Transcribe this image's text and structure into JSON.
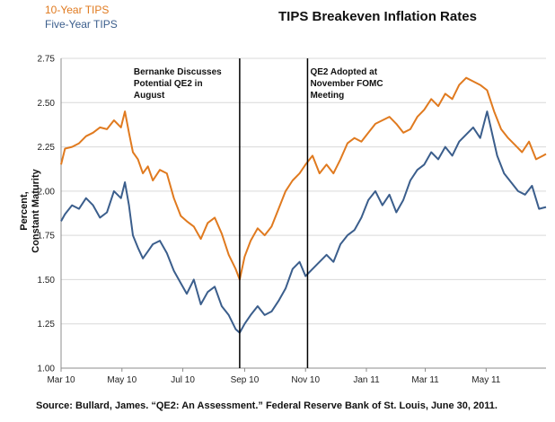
{
  "chart_data": {
    "type": "line",
    "title": "TIPS Breakeven Inflation Rates",
    "ylabel": [
      "Percent,",
      "Constant Maturity"
    ],
    "source": "Source: Bullard, James. “QE2: An Assessment.” Federal Reserve Bank of St. Louis, June 30, 2011.",
    "ylim": [
      1.0,
      2.75
    ],
    "y_ticks": [
      "1.00",
      "1.25",
      "1.50",
      "1.75",
      "2.00",
      "2.25",
      "2.50",
      "2.75"
    ],
    "x_range": [
      "2010-03-01",
      "2011-06-30"
    ],
    "x_ticks": [
      {
        "date": "2010-03-01",
        "label": "Mar 10"
      },
      {
        "date": "2010-05-01",
        "label": "May 10"
      },
      {
        "date": "2010-07-01",
        "label": "Jul 10"
      },
      {
        "date": "2010-09-01",
        "label": "Sep 10"
      },
      {
        "date": "2010-11-01",
        "label": "Nov 10"
      },
      {
        "date": "2011-01-01",
        "label": "Jan 11"
      },
      {
        "date": "2011-03-01",
        "label": "Mar 11"
      },
      {
        "date": "2011-05-01",
        "label": "May 11"
      }
    ],
    "grid": true,
    "legend": "top-left",
    "annotations": [
      {
        "date": "2010-08-27",
        "lines": [
          "Bernanke Discusses",
          "Potential QE2 in",
          "August"
        ]
      },
      {
        "date": "2010-11-03",
        "lines": [
          "QE2 Adopted at",
          "November FOMC",
          "Meeting"
        ]
      }
    ],
    "series": [
      {
        "name": "10-Year TIPS",
        "color": "#e07a1f",
        "points": [
          [
            "2010-03-01",
            2.15
          ],
          [
            "2010-03-05",
            2.24
          ],
          [
            "2010-03-12",
            2.25
          ],
          [
            "2010-03-19",
            2.27
          ],
          [
            "2010-03-26",
            2.31
          ],
          [
            "2010-04-02",
            2.33
          ],
          [
            "2010-04-09",
            2.36
          ],
          [
            "2010-04-16",
            2.35
          ],
          [
            "2010-04-23",
            2.4
          ],
          [
            "2010-04-30",
            2.36
          ],
          [
            "2010-05-04",
            2.45
          ],
          [
            "2010-05-08",
            2.33
          ],
          [
            "2010-05-12",
            2.22
          ],
          [
            "2010-05-17",
            2.18
          ],
          [
            "2010-05-22",
            2.1
          ],
          [
            "2010-05-27",
            2.14
          ],
          [
            "2010-06-01",
            2.06
          ],
          [
            "2010-06-08",
            2.12
          ],
          [
            "2010-06-15",
            2.1
          ],
          [
            "2010-06-22",
            1.96
          ],
          [
            "2010-06-29",
            1.86
          ],
          [
            "2010-07-05",
            1.83
          ],
          [
            "2010-07-12",
            1.8
          ],
          [
            "2010-07-19",
            1.73
          ],
          [
            "2010-07-26",
            1.82
          ],
          [
            "2010-08-02",
            1.85
          ],
          [
            "2010-08-09",
            1.76
          ],
          [
            "2010-08-16",
            1.64
          ],
          [
            "2010-08-23",
            1.56
          ],
          [
            "2010-08-27",
            1.5
          ],
          [
            "2010-09-01",
            1.63
          ],
          [
            "2010-09-07",
            1.72
          ],
          [
            "2010-09-14",
            1.79
          ],
          [
            "2010-09-21",
            1.75
          ],
          [
            "2010-09-28",
            1.8
          ],
          [
            "2010-10-05",
            1.9
          ],
          [
            "2010-10-12",
            2.0
          ],
          [
            "2010-10-19",
            2.06
          ],
          [
            "2010-10-26",
            2.1
          ],
          [
            "2010-11-01",
            2.15
          ],
          [
            "2010-11-08",
            2.2
          ],
          [
            "2010-11-15",
            2.1
          ],
          [
            "2010-11-22",
            2.15
          ],
          [
            "2010-11-29",
            2.1
          ],
          [
            "2010-12-06",
            2.18
          ],
          [
            "2010-12-13",
            2.27
          ],
          [
            "2010-12-20",
            2.3
          ],
          [
            "2010-12-27",
            2.28
          ],
          [
            "2011-01-03",
            2.33
          ],
          [
            "2011-01-10",
            2.38
          ],
          [
            "2011-01-17",
            2.4
          ],
          [
            "2011-01-24",
            2.42
          ],
          [
            "2011-01-31",
            2.38
          ],
          [
            "2011-02-07",
            2.33
          ],
          [
            "2011-02-14",
            2.35
          ],
          [
            "2011-02-21",
            2.42
          ],
          [
            "2011-02-28",
            2.46
          ],
          [
            "2011-03-07",
            2.52
          ],
          [
            "2011-03-14",
            2.48
          ],
          [
            "2011-03-21",
            2.55
          ],
          [
            "2011-03-28",
            2.52
          ],
          [
            "2011-04-04",
            2.6
          ],
          [
            "2011-04-11",
            2.64
          ],
          [
            "2011-04-18",
            2.62
          ],
          [
            "2011-04-25",
            2.6
          ],
          [
            "2011-05-02",
            2.57
          ],
          [
            "2011-05-09",
            2.45
          ],
          [
            "2011-05-16",
            2.35
          ],
          [
            "2011-05-23",
            2.3
          ],
          [
            "2011-05-30",
            2.26
          ],
          [
            "2011-06-06",
            2.22
          ],
          [
            "2011-06-13",
            2.28
          ],
          [
            "2011-06-20",
            2.18
          ],
          [
            "2011-06-27",
            2.2
          ],
          [
            "2011-06-30",
            2.21
          ]
        ]
      },
      {
        "name": "Five-Year TIPS",
        "color": "#3b5e8c",
        "points": [
          [
            "2010-03-01",
            1.83
          ],
          [
            "2010-03-05",
            1.87
          ],
          [
            "2010-03-12",
            1.92
          ],
          [
            "2010-03-19",
            1.9
          ],
          [
            "2010-03-26",
            1.96
          ],
          [
            "2010-04-02",
            1.92
          ],
          [
            "2010-04-09",
            1.85
          ],
          [
            "2010-04-16",
            1.88
          ],
          [
            "2010-04-23",
            2.0
          ],
          [
            "2010-04-30",
            1.96
          ],
          [
            "2010-05-04",
            2.05
          ],
          [
            "2010-05-08",
            1.92
          ],
          [
            "2010-05-12",
            1.75
          ],
          [
            "2010-05-17",
            1.68
          ],
          [
            "2010-05-22",
            1.62
          ],
          [
            "2010-05-27",
            1.66
          ],
          [
            "2010-06-01",
            1.7
          ],
          [
            "2010-06-08",
            1.72
          ],
          [
            "2010-06-15",
            1.65
          ],
          [
            "2010-06-22",
            1.55
          ],
          [
            "2010-06-29",
            1.48
          ],
          [
            "2010-07-05",
            1.42
          ],
          [
            "2010-07-12",
            1.5
          ],
          [
            "2010-07-19",
            1.36
          ],
          [
            "2010-07-26",
            1.43
          ],
          [
            "2010-08-02",
            1.46
          ],
          [
            "2010-08-09",
            1.35
          ],
          [
            "2010-08-16",
            1.3
          ],
          [
            "2010-08-23",
            1.22
          ],
          [
            "2010-08-27",
            1.2
          ],
          [
            "2010-09-01",
            1.25
          ],
          [
            "2010-09-07",
            1.3
          ],
          [
            "2010-09-14",
            1.35
          ],
          [
            "2010-09-21",
            1.3
          ],
          [
            "2010-09-28",
            1.32
          ],
          [
            "2010-10-05",
            1.38
          ],
          [
            "2010-10-12",
            1.45
          ],
          [
            "2010-10-19",
            1.56
          ],
          [
            "2010-10-26",
            1.6
          ],
          [
            "2010-11-01",
            1.52
          ],
          [
            "2010-11-08",
            1.56
          ],
          [
            "2010-11-15",
            1.6
          ],
          [
            "2010-11-22",
            1.64
          ],
          [
            "2010-11-29",
            1.6
          ],
          [
            "2010-12-06",
            1.7
          ],
          [
            "2010-12-13",
            1.75
          ],
          [
            "2010-12-20",
            1.78
          ],
          [
            "2010-12-27",
            1.85
          ],
          [
            "2011-01-03",
            1.95
          ],
          [
            "2011-01-10",
            2.0
          ],
          [
            "2011-01-17",
            1.92
          ],
          [
            "2011-01-24",
            1.98
          ],
          [
            "2011-01-31",
            1.88
          ],
          [
            "2011-02-07",
            1.95
          ],
          [
            "2011-02-14",
            2.06
          ],
          [
            "2011-02-21",
            2.12
          ],
          [
            "2011-02-28",
            2.15
          ],
          [
            "2011-03-07",
            2.22
          ],
          [
            "2011-03-14",
            2.18
          ],
          [
            "2011-03-21",
            2.25
          ],
          [
            "2011-03-28",
            2.2
          ],
          [
            "2011-04-04",
            2.28
          ],
          [
            "2011-04-11",
            2.32
          ],
          [
            "2011-04-18",
            2.36
          ],
          [
            "2011-04-25",
            2.3
          ],
          [
            "2011-05-02",
            2.45
          ],
          [
            "2011-05-06",
            2.35
          ],
          [
            "2011-05-12",
            2.2
          ],
          [
            "2011-05-19",
            2.1
          ],
          [
            "2011-05-26",
            2.05
          ],
          [
            "2011-06-02",
            2.0
          ],
          [
            "2011-06-09",
            1.98
          ],
          [
            "2011-06-16",
            2.03
          ],
          [
            "2011-06-23",
            1.9
          ],
          [
            "2011-06-30",
            1.91
          ]
        ]
      }
    ]
  }
}
